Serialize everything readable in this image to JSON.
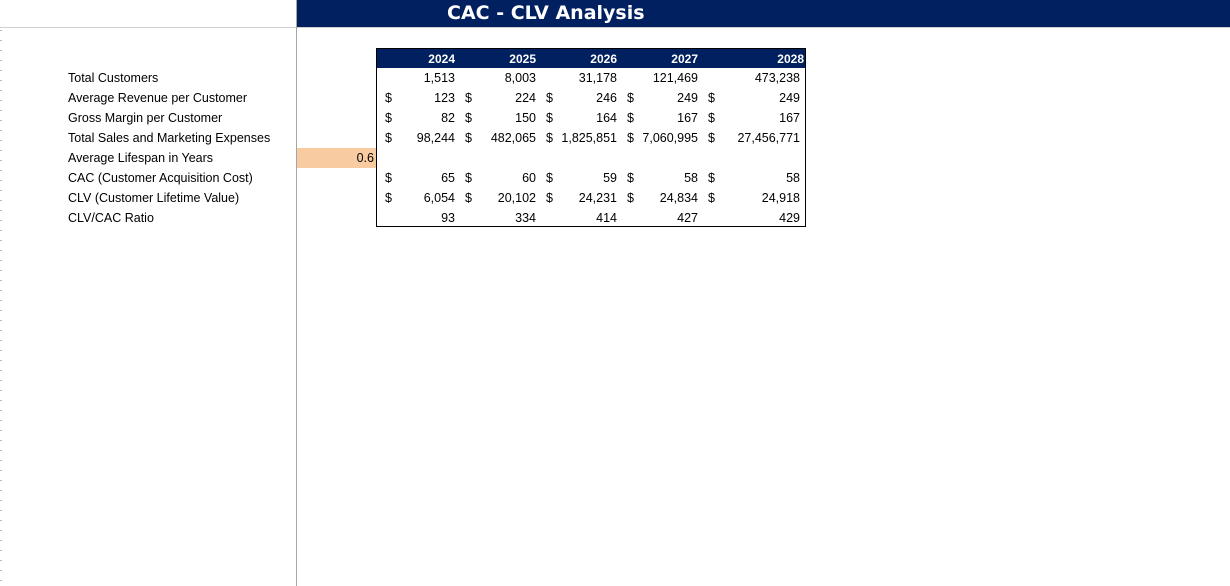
{
  "title": "CAC - CLV Analysis",
  "years": [
    "2024",
    "2025",
    "2026",
    "2027",
    "2028"
  ],
  "rows": [
    {
      "label": "Total Customers",
      "currency": false,
      "values": [
        "1,513",
        "8,003",
        "31,178",
        "121,469",
        "473,238"
      ]
    },
    {
      "label": "Average Revenue per Customer",
      "currency": true,
      "values": [
        "123",
        "224",
        "246",
        "249",
        "249"
      ]
    },
    {
      "label": "Gross Margin per Customer",
      "currency": true,
      "values": [
        "82",
        "150",
        "164",
        "167",
        "167"
      ]
    },
    {
      "label": "Total Sales and Marketing Expenses",
      "currency": true,
      "values": [
        "98,244",
        "482,065",
        "1,825,851",
        "7,060,995",
        "27,456,771"
      ]
    },
    {
      "label": "Average Lifespan in Years",
      "currency": false,
      "values": []
    },
    {
      "label": "CAC (Customer Acquisition Cost)",
      "currency": true,
      "values": [
        "65",
        "60",
        "59",
        "58",
        "58"
      ]
    },
    {
      "label": "CLV (Customer Lifetime Value)",
      "currency": true,
      "values": [
        "6,054",
        "20,102",
        "24,231",
        "24,834",
        "24,918"
      ]
    },
    {
      "label": "CLV/CAC Ratio",
      "currency": false,
      "values": [
        "93",
        "334",
        "414",
        "427",
        "429"
      ]
    }
  ],
  "lifespan_input": "0.6",
  "currency_symbol": "$",
  "colors": {
    "header_bg": "#002060",
    "input_fill": "#f8cba0"
  }
}
